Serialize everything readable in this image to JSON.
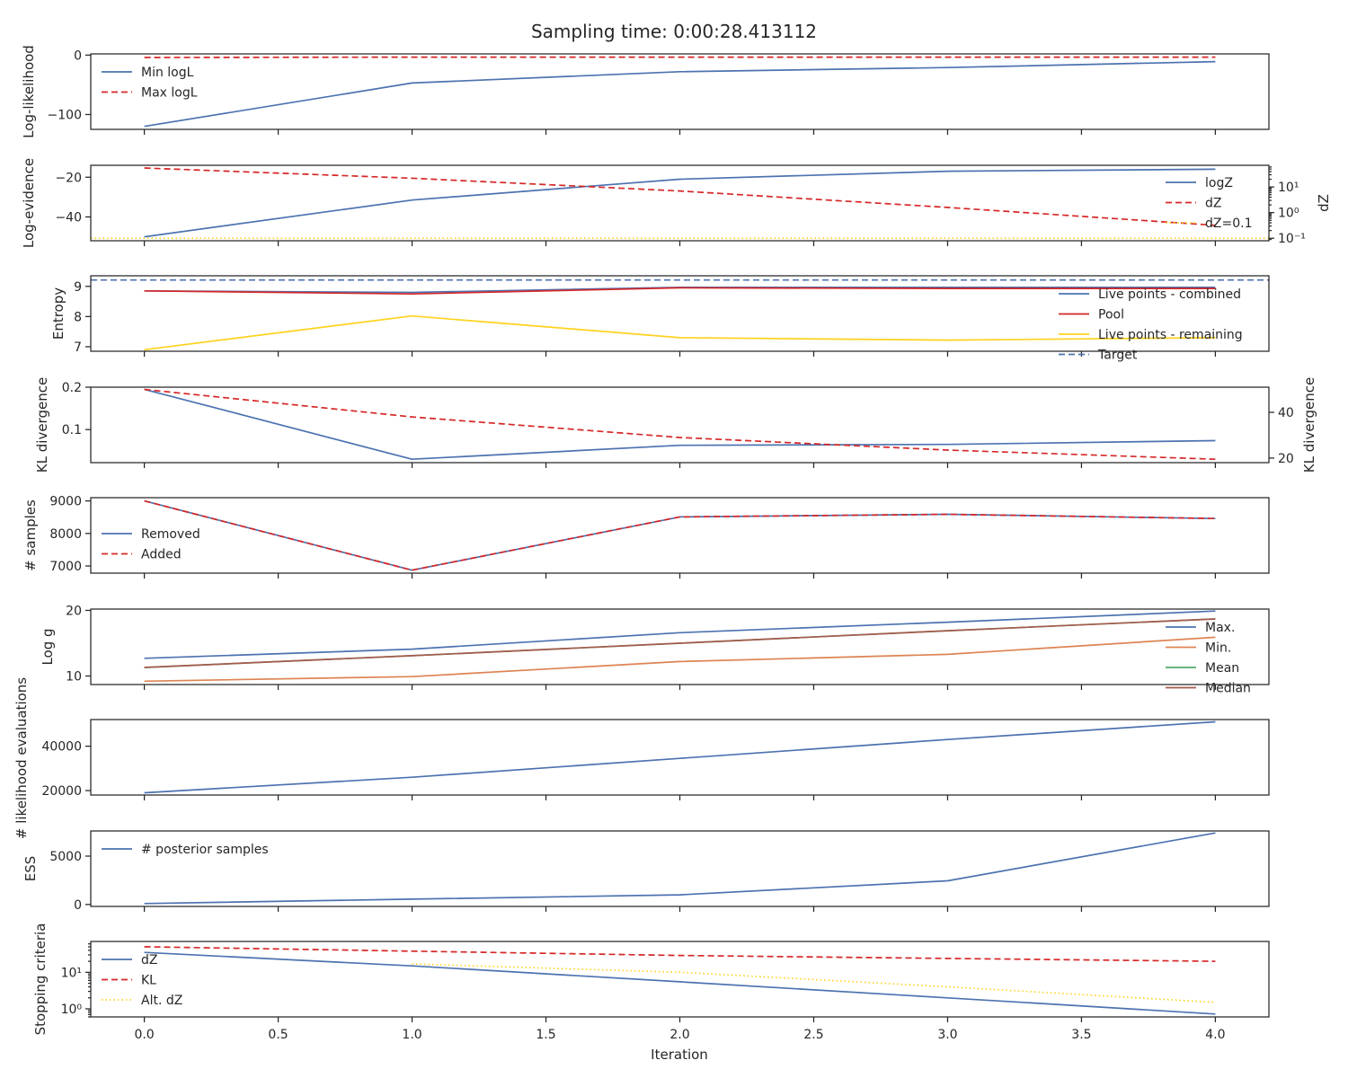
{
  "figure": {
    "title": "Sampling time: 0:00:28.413112",
    "xlabel": "Iteration",
    "x_ticks": [
      "0.0",
      "0.5",
      "1.0",
      "1.5",
      "2.0",
      "2.5",
      "3.0",
      "3.5",
      "4.0"
    ]
  },
  "colors": {
    "blue": "#4c72b0",
    "red": "#d62728",
    "gold": "#ffd21f",
    "orange": "#dd8452",
    "green": "#55a868",
    "brown": "#a55a4c"
  },
  "chart_data": [
    {
      "type": "line",
      "ylabel": "Log-likelihood",
      "x": [
        0,
        1,
        2,
        3,
        4
      ],
      "xlim": [
        -0.2,
        4.2
      ],
      "ylim": [
        -125,
        2
      ],
      "yticks": [
        0,
        -100
      ],
      "ytick_labels": [
        "0",
        "−100"
      ],
      "legend": "upper-left",
      "series": [
        {
          "name": "Min logL",
          "values": [
            -120,
            -47,
            -28,
            -21,
            -11
          ],
          "color": "blue",
          "dash": "solid"
        },
        {
          "name": "Max logL",
          "values": [
            -4,
            -3.5,
            -3.5,
            -3.5,
            -3.5
          ],
          "color": "red",
          "dash": "dashed"
        }
      ]
    },
    {
      "type": "line",
      "ylabel": "Log-evidence",
      "ylabel_right": "dZ",
      "x": [
        0,
        1,
        2,
        3,
        4
      ],
      "xlim": [
        -0.2,
        4.2
      ],
      "ylim": [
        -52,
        -14
      ],
      "yticks": [
        -20,
        -40
      ],
      "ytick_labels": [
        "−20",
        "−40"
      ],
      "y2_scale": "log",
      "y2lim": [
        0.08,
        70
      ],
      "y2ticks": [
        10,
        1,
        0.1
      ],
      "y2tick_labels": [
        "10¹",
        "10⁰",
        "10⁻¹"
      ],
      "legend": "right",
      "series": [
        {
          "name": "logZ",
          "values": [
            -50,
            -31.5,
            -21,
            -17,
            -16
          ],
          "color": "blue",
          "dash": "solid"
        },
        {
          "name": "dZ",
          "values": [
            55,
            22,
            7,
            1.6,
            0.32
          ],
          "axis": "y2",
          "color": "red",
          "dash": "dashed"
        },
        {
          "name": "dZ=0.1",
          "hline": 0.1,
          "axis": "y2",
          "color": "gold",
          "dash": "dotted"
        }
      ]
    },
    {
      "type": "line",
      "ylabel": "Entropy",
      "x": [
        0,
        1,
        2,
        3,
        4
      ],
      "xlim": [
        -0.2,
        4.2
      ],
      "ylim": [
        6.85,
        9.35
      ],
      "yticks": [
        9,
        8,
        7
      ],
      "ytick_labels": [
        "9",
        "8",
        "7"
      ],
      "legend": "lower-right",
      "series": [
        {
          "name": "Live points - combined",
          "values": [
            8.85,
            8.8,
            8.97,
            8.97,
            8.97
          ],
          "color": "blue",
          "dash": "solid"
        },
        {
          "name": "Pool",
          "values": [
            8.85,
            8.75,
            8.95,
            8.93,
            8.93
          ],
          "color": "red",
          "dash": "solid"
        },
        {
          "name": "Live points - remaining",
          "values": [
            6.9,
            8.02,
            7.3,
            7.22,
            7.3
          ],
          "color": "gold",
          "dash": "solid"
        },
        {
          "name": "Target",
          "hline": 9.21,
          "color": "blue",
          "dash": "dashed"
        }
      ]
    },
    {
      "type": "line",
      "ylabel": "KL divergence",
      "ylabel_right": "KL divergence",
      "x": [
        0,
        1,
        2,
        3,
        4
      ],
      "xlim": [
        -0.2,
        4.2
      ],
      "ylim": [
        0.022,
        0.2
      ],
      "yticks": [
        0.2,
        0.1
      ],
      "ytick_labels": [
        "0.2",
        "0.1"
      ],
      "y2lim": [
        18,
        51
      ],
      "y2ticks": [
        40,
        20
      ],
      "y2tick_labels": [
        "40",
        "20"
      ],
      "series": [
        {
          "name": "",
          "values": [
            0.195,
            0.03,
            0.063,
            0.065,
            0.074
          ],
          "color": "blue",
          "dash": "solid"
        },
        {
          "name": "",
          "values": [
            50,
            38,
            29,
            23.5,
            19.5
          ],
          "axis": "y2",
          "color": "red",
          "dash": "dashed"
        }
      ]
    },
    {
      "type": "line",
      "ylabel": "# samples",
      "x": [
        0,
        1,
        2,
        3,
        4
      ],
      "xlim": [
        -0.2,
        4.2
      ],
      "ylim": [
        6780,
        9100
      ],
      "yticks": [
        9000,
        8000,
        7000
      ],
      "ytick_labels": [
        "9000",
        "8000",
        "7000"
      ],
      "legend": "center-left",
      "series": [
        {
          "name": "Removed",
          "values": [
            9000,
            6870,
            8510,
            8590,
            8460
          ],
          "color": "blue",
          "dash": "solid"
        },
        {
          "name": "Added",
          "values": [
            9000,
            6870,
            8510,
            8590,
            8460
          ],
          "color": "red",
          "dash": "dashed"
        }
      ]
    },
    {
      "type": "line",
      "ylabel": "Log g",
      "x": [
        0,
        1,
        2,
        3,
        4
      ],
      "xlim": [
        -0.2,
        4.2
      ],
      "ylim": [
        8.7,
        20.2
      ],
      "yticks": [
        20,
        10
      ],
      "ytick_labels": [
        "20",
        "10"
      ],
      "legend": "right",
      "series": [
        {
          "name": "Max.",
          "values": [
            12.7,
            14.1,
            16.6,
            18.2,
            19.9
          ],
          "color": "blue",
          "dash": "solid"
        },
        {
          "name": "Min.",
          "values": [
            9.2,
            9.9,
            12.2,
            13.3,
            15.9
          ],
          "color": "orange",
          "dash": "solid"
        },
        {
          "name": "Mean",
          "values": [
            11.3,
            13.1,
            15.0,
            16.9,
            18.7
          ],
          "color": "green",
          "dash": "solid"
        },
        {
          "name": "Median",
          "values": [
            11.3,
            13.1,
            15.0,
            16.9,
            18.7
          ],
          "color": "brown",
          "dash": "solid"
        }
      ]
    },
    {
      "type": "line",
      "ylabel": "# likelihood evaluations",
      "x": [
        0,
        1,
        2,
        3,
        4
      ],
      "xlim": [
        -0.2,
        4.2
      ],
      "ylim": [
        18000,
        52000
      ],
      "yticks": [
        40000,
        20000
      ],
      "ytick_labels": [
        "40000",
        "20000"
      ],
      "series": [
        {
          "name": "",
          "values": [
            19000,
            26000,
            34500,
            43000,
            51000
          ],
          "color": "blue",
          "dash": "solid"
        }
      ]
    },
    {
      "type": "line",
      "ylabel": "ESS",
      "x": [
        0,
        1,
        2,
        3,
        4
      ],
      "xlim": [
        -0.2,
        4.2
      ],
      "ylim": [
        -200,
        7600
      ],
      "yticks": [
        5000,
        0
      ],
      "ytick_labels": [
        "5000",
        "0"
      ],
      "legend": "upper-left",
      "series": [
        {
          "name": "# posterior samples",
          "values": [
            100,
            550,
            1000,
            2450,
            7400
          ],
          "color": "blue",
          "dash": "solid"
        }
      ]
    },
    {
      "type": "line",
      "ylabel": "Stopping criteria",
      "scale": "log",
      "x": [
        0,
        1,
        2,
        3,
        4
      ],
      "xlim": [
        -0.2,
        4.2
      ],
      "ylim": [
        0.6,
        70
      ],
      "yticks": [
        10,
        1
      ],
      "ytick_labels": [
        "10¹",
        "10⁰"
      ],
      "legend": "upper-left",
      "series": [
        {
          "name": "dZ",
          "values": [
            35,
            15,
            5.5,
            2,
            0.72
          ],
          "color": "blue",
          "dash": "solid"
        },
        {
          "name": "KL",
          "values": [
            50,
            38,
            29,
            24,
            20
          ],
          "color": "red",
          "dash": "dashed"
        },
        {
          "name": "Alt. dZ",
          "x": [
            1,
            2,
            3,
            4
          ],
          "values": [
            17,
            10,
            4,
            1.5
          ],
          "color": "gold",
          "dash": "dotted"
        }
      ]
    }
  ]
}
